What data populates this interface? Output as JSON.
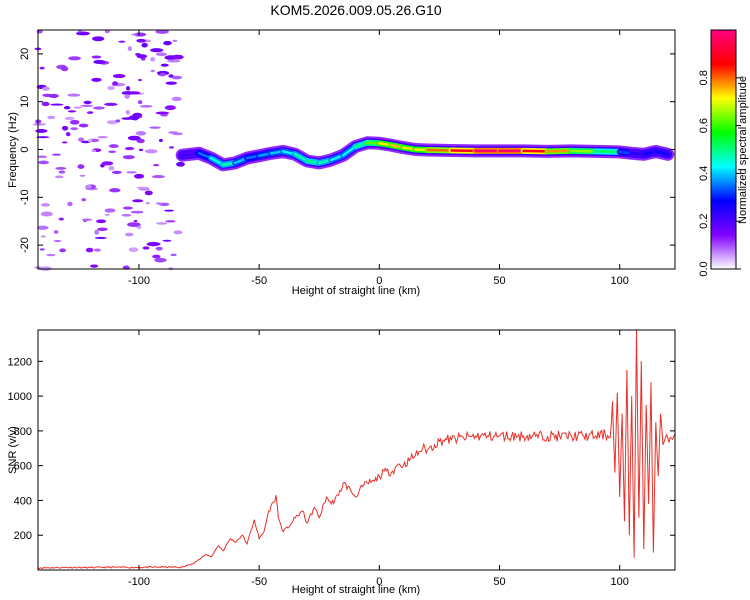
{
  "figure_title": "KOM5.2026.009.05.26.G10",
  "chart_data": [
    {
      "type": "heatmap",
      "title": "",
      "xlabel": "Height of straight line (km)",
      "ylabel": "Frequency (Hz)",
      "xlim": [
        -142,
        123
      ],
      "ylim": [
        -25,
        25
      ],
      "xticks": [
        -100,
        -50,
        0,
        50,
        100
      ],
      "yticks": [
        -20,
        -10,
        0,
        10,
        20
      ],
      "grid": false,
      "ridge": {
        "x": [
          -82,
          -75,
          -70,
          -65,
          -60,
          -55,
          -50,
          -45,
          -40,
          -35,
          -30,
          -25,
          -20,
          -15,
          -10,
          -5,
          0,
          5,
          10,
          15,
          20,
          30,
          40,
          50,
          60,
          70,
          80,
          90,
          100,
          105,
          110,
          115,
          120
        ],
        "y": [
          -1.2,
          -0.8,
          -1.8,
          -3.2,
          -2.8,
          -1.8,
          -1.3,
          -0.8,
          -0.4,
          -1.0,
          -2.4,
          -2.8,
          -2.2,
          -1.2,
          0.6,
          1.4,
          1.3,
          0.9,
          0.4,
          0.0,
          -0.1,
          -0.2,
          -0.3,
          -0.3,
          -0.3,
          -0.4,
          -0.3,
          -0.4,
          -0.5,
          -0.8,
          -1.0,
          -0.4,
          -1.0
        ],
        "amplitude": [
          0.15,
          0.3,
          0.4,
          0.5,
          0.45,
          0.35,
          0.35,
          0.4,
          0.4,
          0.45,
          0.5,
          0.5,
          0.45,
          0.4,
          0.45,
          0.55,
          0.7,
          0.75,
          0.75,
          0.7,
          0.75,
          0.85,
          0.95,
          1.0,
          0.95,
          0.85,
          0.7,
          0.6,
          0.45,
          0.2,
          0.3,
          0.25,
          0.3
        ]
      },
      "colorbar": {
        "label": "Normalized spectral amplitude",
        "range": [
          0,
          1
        ],
        "ticks": [
          0.0,
          0.2,
          0.4,
          0.6,
          0.8
        ],
        "tick_labels": [
          "0.0",
          "0.2",
          "0.4",
          "0.6",
          "0.8"
        ],
        "colors": [
          "#ffffff",
          "#8000ff",
          "#0000ff",
          "#00ffff",
          "#00ff00",
          "#ffff00",
          "#ff0000",
          "#ff0080"
        ]
      }
    },
    {
      "type": "line",
      "title": "",
      "xlabel": "Height of straight line (km)",
      "ylabel": "SNR (v/v)",
      "xlim": [
        -142,
        123
      ],
      "ylim": [
        0,
        1380
      ],
      "xticks": [
        -100,
        -50,
        0,
        50,
        100
      ],
      "yticks": [
        200,
        400,
        600,
        800,
        1000,
        1200
      ],
      "grid": false,
      "series": [
        {
          "color": "#e8302a",
          "x": [
            -142,
            -130,
            -120,
            -110,
            -100,
            -90,
            -82,
            -78,
            -75,
            -72,
            -70,
            -67,
            -65,
            -62,
            -60,
            -57,
            -55,
            -52,
            -50,
            -48,
            -46,
            -44,
            -43,
            -42,
            -40,
            -37,
            -35,
            -32,
            -30,
            -27,
            -25,
            -22,
            -20,
            -17,
            -15,
            -12,
            -10,
            -7,
            -5,
            -2,
            0,
            3,
            5,
            8,
            10,
            13,
            15,
            18,
            20,
            23,
            25,
            28,
            30,
            35,
            40,
            45,
            50,
            55,
            60,
            65,
            70,
            75,
            80,
            85,
            90,
            94,
            96,
            97,
            98,
            99,
            100,
            101,
            102,
            103,
            104,
            105,
            106,
            107,
            108,
            109,
            110,
            111,
            112,
            113,
            114,
            115,
            116,
            117,
            118,
            120,
            123
          ],
          "y": [
            12,
            15,
            14,
            16,
            15,
            17,
            16,
            35,
            60,
            90,
            75,
            140,
            110,
            180,
            160,
            200,
            150,
            290,
            180,
            220,
            340,
            390,
            430,
            300,
            220,
            260,
            300,
            340,
            270,
            360,
            300,
            420,
            380,
            430,
            500,
            460,
            420,
            480,
            500,
            510,
            540,
            570,
            560,
            610,
            600,
            640,
            660,
            700,
            690,
            720,
            740,
            750,
            750,
            760,
            770,
            770,
            770,
            770,
            770,
            770,
            770,
            770,
            770,
            770,
            770,
            780,
            760,
            970,
            560,
            1020,
            420,
            900,
            280,
            1150,
            200,
            1000,
            70,
            1380,
            300,
            1200,
            120,
            950,
            380,
            1080,
            100,
            850,
            540,
            900,
            720,
            760,
            780
          ]
        }
      ]
    }
  ]
}
